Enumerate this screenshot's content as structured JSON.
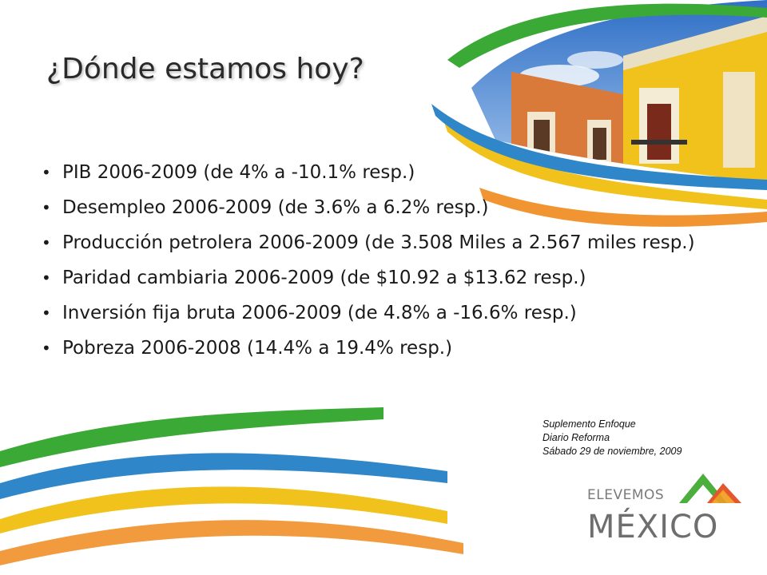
{
  "slide": {
    "title": "¿Dónde estamos hoy?",
    "bullets": [
      "PIB 2006-2009 (de 4% a -10.1% resp.)",
      "Desempleo 2006-2009 (de 3.6% a 6.2% resp.)",
      "Producción petrolera 2006-2009 (de 3.508 Miles a 2.567 miles resp.)",
      "Paridad cambiaria 2006-2009 (de $10.92 a $13.62 resp.)",
      "Inversión fija bruta 2006-2009 (de 4.8% a -16.6% resp.)",
      "Pobreza  2006-2008 (14.4% a 19.4% resp.)"
    ],
    "bullet_symbol": "•",
    "source": {
      "line1": "Suplemento Enfoque",
      "line2": "Diario Reforma",
      "line3": "Sábado 29 de noviembre, 2009"
    },
    "logo": {
      "top": "ELEVEMOS",
      "main": "MÉXICO"
    }
  },
  "colors": {
    "green_ribbon": "#3aa935",
    "blue_ribbon": "#2f86c8",
    "yellow_ribbon": "#f0c21b",
    "orange_ribbon": "#f08a1c",
    "logo_green": "#4cae3c",
    "logo_orange": "#e4572e",
    "building_yellow": "#f1c21c",
    "building_orange": "#d9793a",
    "sky_blue": "#3d7fd0"
  }
}
